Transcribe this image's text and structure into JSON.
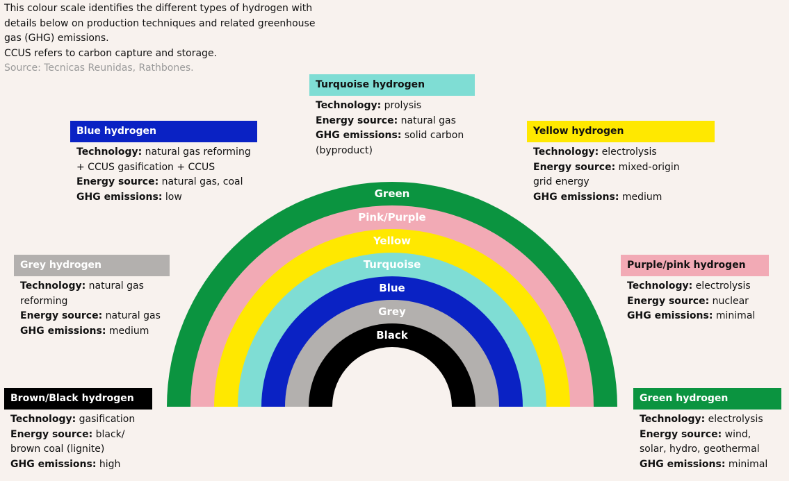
{
  "intro": {
    "lines": [
      "This colour scale identifies the different types of hydrogen with",
      "details below on production techniques and related greenhouse",
      "gas (GHG) emissions.",
      "CCUS refers to carbon capture and storage."
    ],
    "source": "Source: Tecnicas Reunidas, Rathbones."
  },
  "labels": {
    "technology": "Technology:",
    "energy": "Energy source:",
    "ghg": "GHG emissions:"
  },
  "cards": {
    "turquoise": {
      "title": "Turquoise hydrogen",
      "color": "#7fddd4",
      "text_color": "#111111",
      "technology": "prolysis",
      "energy": "natural gas",
      "ghg": "solid carbon (byproduct)"
    },
    "blue": {
      "title": "Blue hydrogen",
      "color": "#0a22c4",
      "text_color": "#ffffff",
      "technology": "natural gas reforming + CCUS gasification + CCUS",
      "energy": "natural gas, coal",
      "ghg": "low"
    },
    "yellow": {
      "title": "Yellow hydrogen",
      "color": "#ffe800",
      "text_color": "#111111",
      "technology": "electrolysis",
      "energy": "mixed-origin grid energy",
      "ghg": "medium"
    },
    "grey": {
      "title": "Grey hydrogen",
      "color": "#b3b0ae",
      "text_color": "#ffffff",
      "technology": "natural gas reforming",
      "energy": "natural gas",
      "ghg": "medium"
    },
    "pink": {
      "title": "Purple/pink hydrogen",
      "color": "#f2aab5",
      "text_color": "#111111",
      "technology": "electrolysis",
      "energy": "nuclear",
      "ghg": "minimal"
    },
    "black": {
      "title": "Brown/Black hydrogen",
      "color": "#000000",
      "text_color": "#ffffff",
      "technology": "gasification",
      "energy": "black/ brown coal (lignite)",
      "ghg": "high"
    },
    "green": {
      "title": "Green hydrogen",
      "color": "#0b9440",
      "text_color": "#ffffff",
      "technology": "electrolysis",
      "energy": "wind, solar, hydro, geothermal",
      "ghg": "minimal"
    }
  },
  "rainbow": {
    "bands": [
      {
        "label": "Green",
        "color": "#0b9440",
        "text_color": "#ffffff"
      },
      {
        "label": "Pink/Purple",
        "color": "#f2aab5",
        "text_color": "#ffffff"
      },
      {
        "label": "Yellow",
        "color": "#ffe800",
        "text_color": "#ffffff"
      },
      {
        "label": "Turquoise",
        "color": "#7fddd4",
        "text_color": "#ffffff"
      },
      {
        "label": "Blue",
        "color": "#0a22c4",
        "text_color": "#ffffff"
      },
      {
        "label": "Grey",
        "color": "#b3b0ae",
        "text_color": "#ffffff"
      },
      {
        "label": "Black",
        "color": "#000000",
        "text_color": "#ffffff"
      }
    ],
    "background": "#f8f2ee"
  }
}
